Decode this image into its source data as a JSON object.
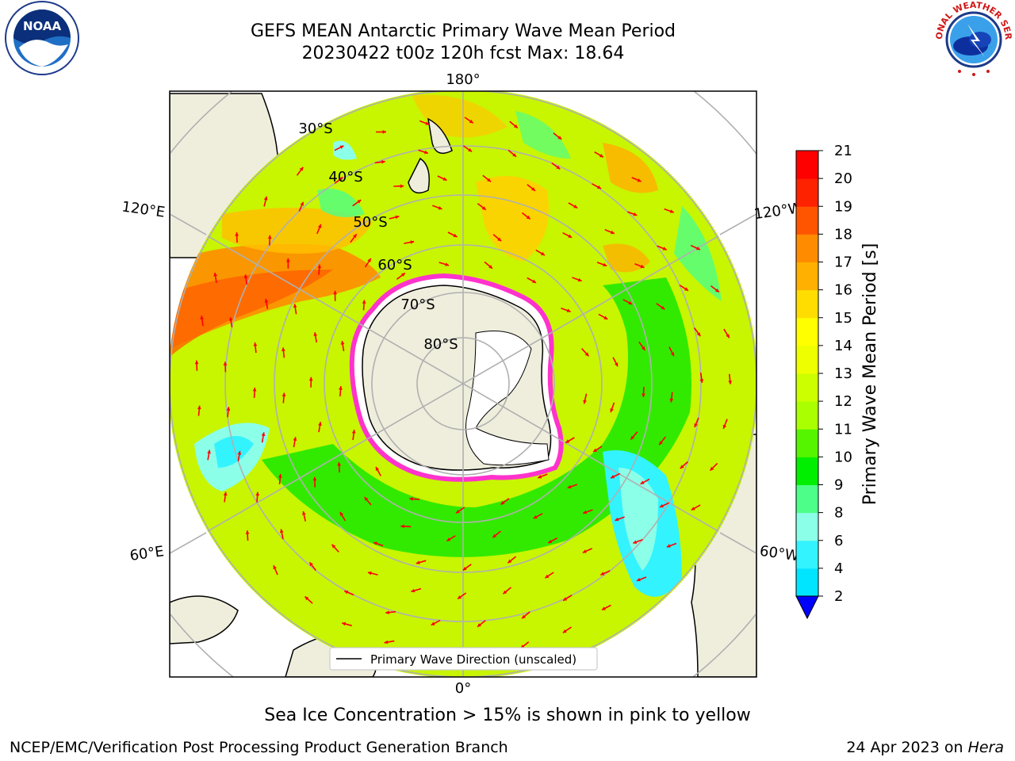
{
  "title": {
    "line1": "GEFS MEAN Antarctic Primary Wave Mean Period",
    "line2": "20230422 t00z 120h fcst   Max: 18.64"
  },
  "map": {
    "projection": "south-polar-stereographic",
    "longitude_labels": {
      "top": "180°",
      "bottom": "0°",
      "upper_left": "120°E",
      "upper_right": "120°W",
      "lower_left": "60°E",
      "lower_right": "60°W"
    },
    "latitude_labels": [
      "30°S",
      "40°S",
      "50°S",
      "60°S",
      "70°S",
      "80°S"
    ],
    "legend": {
      "label": "Primary Wave Direction (unscaled)"
    },
    "arrow_color": "#ff0000",
    "land_color": "#efeedd",
    "grid_color": "#b0b0b0"
  },
  "colorbar": {
    "label": "Primary Wave Mean Period [s]",
    "ticks": [
      "2",
      "4",
      "6",
      "8",
      "9",
      "10",
      "11",
      "12",
      "13",
      "14",
      "15",
      "16",
      "17",
      "18",
      "19",
      "20",
      "21"
    ],
    "colors": [
      "#0a6cff",
      "#00e5ff",
      "#33f3ff",
      "#8cffe8",
      "#4dff88",
      "#00ee00",
      "#55f500",
      "#aaff00",
      "#ccff00",
      "#eeff00",
      "#ffff00",
      "#ffdd00",
      "#ffb000",
      "#ff8c00",
      "#ff5500",
      "#ff2200",
      "#ff0000"
    ],
    "extend_low_color": "#0000ff"
  },
  "footer": {
    "note": "Sea Ice Concentration > 15% is shown in pink to yellow",
    "credit": "NCEP/EMC/Verification Post Processing Product Generation Branch",
    "date": "24 Apr 2023 on ",
    "host": "Hera"
  },
  "logos": {
    "noaa_text": "NOAA",
    "nws_text": "NATIONAL WEATHER SERVICE"
  }
}
